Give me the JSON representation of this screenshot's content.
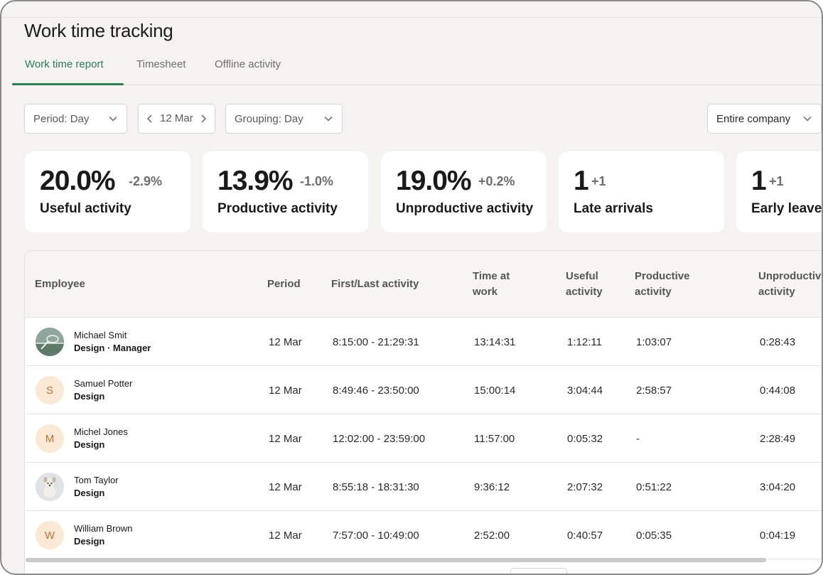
{
  "page": {
    "title": "Work time tracking"
  },
  "tabs": [
    {
      "label": "Work time report",
      "active": true
    },
    {
      "label": "Timesheet",
      "active": false
    },
    {
      "label": "Offline activity",
      "active": false
    }
  ],
  "filters": {
    "period": "Period: Day",
    "date": "12 Mar",
    "grouping": "Grouping: Day",
    "scope": "Entire company"
  },
  "stats": [
    {
      "value": "20.0%",
      "delta": "-2.9%",
      "label": "Useful activity"
    },
    {
      "value": "13.9%",
      "delta": "-1.0%",
      "label": "Productive activity"
    },
    {
      "value": "19.0%",
      "delta": "+0.2%",
      "label": "Unproductive activity"
    },
    {
      "value": "1",
      "delta": "+1",
      "label": "Late arrivals"
    },
    {
      "value": "1",
      "delta": "+1",
      "label": "Early leaves"
    }
  ],
  "table": {
    "headers": {
      "employee": "Employee",
      "period": "Period",
      "first_last": "First/Last activity",
      "time_at_work": [
        "Time at",
        "work"
      ],
      "useful": [
        "Useful",
        "activity"
      ],
      "productive": [
        "Productive",
        "activity"
      ],
      "unproductive": [
        "Unproductive",
        "activity"
      ]
    },
    "rows": [
      {
        "name": "Michael Smit",
        "role": "Design · Manager",
        "avatar": "photo-tennis",
        "initial": "",
        "period": "12 Mar",
        "first_last": "8:15:00 - 21:29:31",
        "time_at_work": "13:14:31",
        "useful": "1:12:11",
        "productive": "1:03:07",
        "unproductive": "0:28:43"
      },
      {
        "name": "Samuel Potter",
        "role": "Design",
        "avatar": "initial",
        "initial": "S",
        "period": "12 Mar",
        "first_last": "8:49:46 - 23:50:00",
        "time_at_work": "15:00:14",
        "useful": "3:04:44",
        "productive": "2:58:57",
        "unproductive": "0:44:08"
      },
      {
        "name": "Michel Jones",
        "role": "Design",
        "avatar": "initial",
        "initial": "M",
        "period": "12 Mar",
        "first_last": "12:02:00 - 23:59:00",
        "time_at_work": "11:57:00",
        "useful": "0:05:32",
        "productive": "-",
        "unproductive": "2:28:49"
      },
      {
        "name": "Tom Taylor",
        "role": "Design",
        "avatar": "photo-dog",
        "initial": "",
        "period": "12 Mar",
        "first_last": "8:55:18 - 18:31:30",
        "time_at_work": "9:36:12",
        "useful": "2:07:32",
        "productive": "0:51:22",
        "unproductive": "3:04:20"
      },
      {
        "name": "William Brown",
        "role": "Design",
        "avatar": "initial",
        "initial": "W",
        "period": "12 Mar",
        "first_last": "7:57:00 - 10:49:00",
        "time_at_work": "2:52:00",
        "useful": "0:40:57",
        "productive": "0:05:35",
        "unproductive": "0:04:19"
      }
    ]
  },
  "colors": {
    "accent": "#2e7d59",
    "avatar_bg": "#fbe9d6",
    "avatar_fg": "#c0703a"
  }
}
